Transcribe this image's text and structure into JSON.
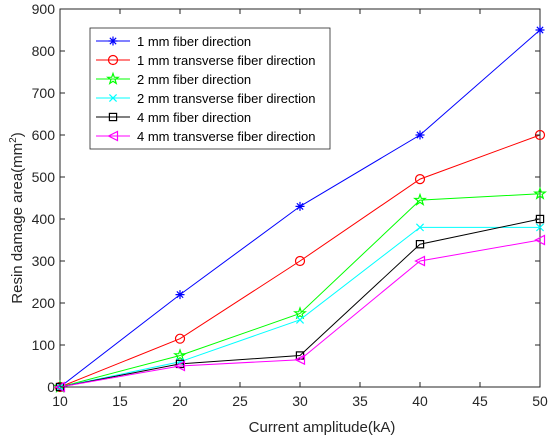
{
  "chart_data": {
    "type": "line",
    "title": "",
    "xlabel": "Current amplitude(kA)",
    "ylabel_prefix": "Resin damage area(mm",
    "ylabel_sup": "2",
    "ylabel_suffix": ")",
    "x": [
      10,
      20,
      30,
      40,
      50
    ],
    "xlim": [
      10,
      50
    ],
    "ylim": [
      0,
      900
    ],
    "xticks": [
      10,
      15,
      20,
      25,
      30,
      35,
      40,
      45,
      50
    ],
    "yticks": [
      0,
      100,
      200,
      300,
      400,
      500,
      600,
      700,
      800,
      900
    ],
    "grid": false,
    "legend_position": "top-left",
    "series": [
      {
        "name": "1 mm fiber direction",
        "color": "#0000FF",
        "marker": "asterisk",
        "values": [
          0,
          220,
          430,
          600,
          850
        ]
      },
      {
        "name": "1 mm transverse fiber direction",
        "color": "#FF0000",
        "marker": "circle",
        "values": [
          0,
          115,
          300,
          495,
          600
        ]
      },
      {
        "name": "2 mm fiber direction",
        "color": "#00FF00",
        "marker": "pentagram",
        "values": [
          0,
          75,
          175,
          445,
          460
        ]
      },
      {
        "name": "2 mm transverse fiber direction",
        "color": "#00FFFF",
        "marker": "x",
        "values": [
          0,
          60,
          160,
          380,
          380
        ]
      },
      {
        "name": "4 mm fiber direction",
        "color": "#000000",
        "marker": "square",
        "values": [
          0,
          55,
          75,
          340,
          400
        ]
      },
      {
        "name": "4 mm transverse fiber direction",
        "color": "#FF00FF",
        "marker": "triangle-left",
        "values": [
          0,
          50,
          65,
          300,
          350
        ]
      }
    ]
  }
}
